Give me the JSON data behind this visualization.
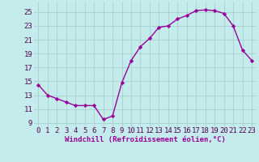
{
  "x": [
    0,
    1,
    2,
    3,
    4,
    5,
    6,
    7,
    8,
    9,
    10,
    11,
    12,
    13,
    14,
    15,
    16,
    17,
    18,
    19,
    20,
    21,
    22,
    23
  ],
  "y": [
    14.5,
    13.0,
    12.5,
    12.0,
    11.5,
    11.5,
    11.5,
    9.5,
    10.0,
    14.8,
    18.0,
    20.0,
    21.2,
    22.8,
    23.0,
    24.0,
    24.5,
    25.2,
    25.3,
    25.2,
    24.8,
    23.0,
    19.5,
    18.0
  ],
  "line_color": "#990099",
  "marker": "D",
  "marker_size": 2.2,
  "bg_color": "#c5ecec",
  "grid_color": "#a8d0d0",
  "xlabel": "Windchill (Refroidissement éolien,°C)",
  "xlabel_fontsize": 6.5,
  "xtick_labels": [
    "0",
    "1",
    "2",
    "3",
    "4",
    "5",
    "6",
    "7",
    "8",
    "9",
    "10",
    "11",
    "12",
    "13",
    "14",
    "15",
    "16",
    "17",
    "18",
    "19",
    "20",
    "21",
    "22",
    "23"
  ],
  "ytick_values": [
    9,
    11,
    13,
    15,
    17,
    19,
    21,
    23,
    25
  ],
  "ylim": [
    8.5,
    26.5
  ],
  "xlim": [
    -0.5,
    23.5
  ],
  "tick_fontsize": 6.5,
  "line_width": 1.0
}
